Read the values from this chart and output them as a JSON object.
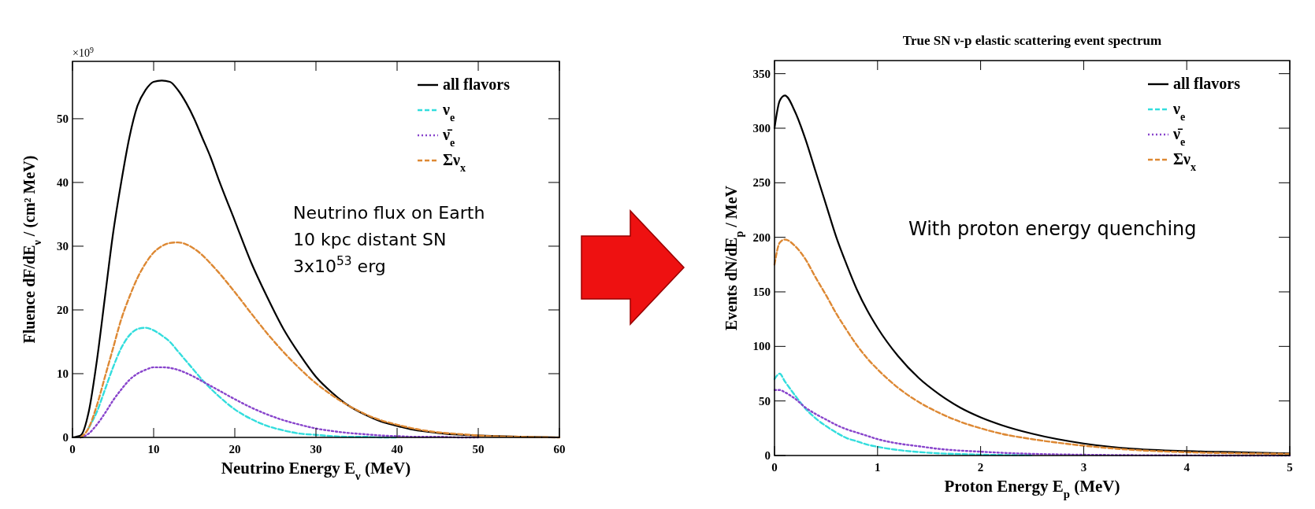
{
  "chart_data": [
    {
      "type": "line",
      "xlabel": "Neutrino Energy E$_{ν}$ (MeV)",
      "ylabel": "Fluence dF/dE$_{ν}$ / (cm² MeV)",
      "annotations": [
        "×10$^{9}$",
        "Neutrino flux on Earth",
        "10 kpc distant SN",
        "3x10$^{53}$ erg"
      ],
      "x": [
        0,
        1,
        2,
        3,
        4,
        5,
        6,
        7,
        8,
        9,
        10,
        11,
        12,
        13,
        14,
        15,
        16,
        17,
        18,
        20,
        22,
        24,
        26,
        28,
        30,
        32,
        34,
        36,
        38,
        40,
        42,
        45,
        48,
        50,
        55,
        60
      ],
      "series": [
        {
          "name": "all flavors",
          "color": "#000000",
          "line_style": "solid",
          "values": [
            0,
            0.3,
            4,
            12,
            22,
            32,
            40,
            47,
            52,
            54.5,
            55.8,
            56,
            55.8,
            54.5,
            52.5,
            50,
            47,
            44,
            40.5,
            34,
            27.5,
            22,
            17,
            13,
            9.5,
            7,
            5,
            3.6,
            2.5,
            1.8,
            1.2,
            0.7,
            0.4,
            0.3,
            0.1,
            0
          ]
        },
        {
          "name": "ν$_{e}$",
          "color": "#33dddd",
          "line_style": "dashed",
          "values": [
            null,
            null,
            1.5,
            4,
            7.5,
            11,
            14,
            16,
            17,
            17.2,
            16.8,
            16,
            15,
            13.5,
            12,
            10.5,
            9,
            7.7,
            6.5,
            4.4,
            2.9,
            1.8,
            1.1,
            0.6,
            0.4,
            0.2,
            0.1,
            0.1,
            0,
            0,
            null,
            null,
            null,
            null,
            null,
            null
          ]
        },
        {
          "name": "ν̄$_{e}$",
          "color": "#8844cc",
          "line_style": "dotted",
          "values": [
            null,
            0,
            0.6,
            2,
            3.8,
            5.8,
            7.5,
            9,
            10,
            10.6,
            11,
            11,
            10.9,
            10.6,
            10.1,
            9.5,
            8.8,
            8.1,
            7.4,
            6,
            4.7,
            3.6,
            2.7,
            2,
            1.4,
            1,
            0.7,
            0.5,
            0.3,
            0.2,
            0.1,
            0.1,
            0,
            0,
            null,
            null
          ]
        },
        {
          "name": "Σν$_{x}$",
          "color": "#dd8833",
          "line_style": "dashed",
          "values": [
            null,
            0,
            1.5,
            5,
            9.5,
            14,
            18.5,
            22,
            25,
            27.3,
            29,
            30,
            30.5,
            30.6,
            30.3,
            29.6,
            28.6,
            27.3,
            25.9,
            22.8,
            19.5,
            16.3,
            13.4,
            10.8,
            8.5,
            6.6,
            5,
            3.7,
            2.7,
            2,
            1.4,
            0.8,
            0.5,
            0.3,
            0.1,
            0
          ]
        }
      ],
      "xlim": [
        0,
        60
      ],
      "xticks": [
        0,
        10,
        20,
        30,
        40,
        50,
        60
      ],
      "ylim": [
        0,
        59
      ],
      "yticks": [
        0,
        10,
        20,
        30,
        40,
        50
      ],
      "legend": "top right",
      "grid": false
    },
    {
      "type": "line",
      "title": "True SN ν-p elastic scattering event spectrum",
      "xlabel": "Proton Energy E$_{p}$ (MeV)",
      "ylabel": "Events dN/dE$_{p}$ / MeV",
      "annotations": [
        "With proton energy quenching"
      ],
      "x": [
        0,
        0.05,
        0.1,
        0.2,
        0.3,
        0.4,
        0.5,
        0.6,
        0.7,
        0.8,
        0.9,
        1,
        1.2,
        1.4,
        1.6,
        1.8,
        2,
        2.2,
        2.5,
        3,
        3.5,
        4,
        4.5,
        5
      ],
      "series": [
        {
          "name": "all flavors",
          "color": "#000000",
          "line_style": "solid",
          "values": [
            300,
            325,
            330,
            315,
            290,
            260,
            230,
            200,
            175,
            152,
            133,
            117,
            91,
            71,
            56,
            44,
            35,
            28,
            20,
            11,
            6,
            4,
            3,
            2
          ]
        },
        {
          "name": "ν$_{e}$",
          "color": "#33dddd",
          "line_style": "dashed",
          "values": [
            70,
            75,
            68,
            55,
            43,
            34,
            27,
            21,
            16,
            13,
            10,
            8,
            5,
            3.2,
            2,
            1.3,
            0.8,
            0.5,
            0.3,
            null,
            null,
            null,
            null,
            null
          ]
        },
        {
          "name": "ν̄$_{e}$",
          "color": "#8844cc",
          "line_style": "dotted",
          "values": [
            60,
            60,
            58,
            52,
            44,
            38,
            33,
            28,
            24,
            21,
            18,
            15,
            11,
            8.5,
            6,
            4.5,
            3.5,
            2.5,
            1.5,
            0.7,
            0.3,
            0.1,
            0,
            0
          ]
        },
        {
          "name": "Σν$_{x}$",
          "color": "#dd8833",
          "line_style": "dashed",
          "values": [
            175,
            195,
            198,
            192,
            180,
            163,
            147,
            130,
            115,
            101,
            89,
            79,
            62,
            49,
            39,
            31,
            25,
            20,
            15,
            9,
            5,
            3,
            2,
            1.5
          ]
        }
      ],
      "xlim": [
        0,
        5
      ],
      "xticks": [
        0,
        1,
        2,
        3,
        4,
        5
      ],
      "ylim": [
        0,
        362
      ],
      "yticks": [
        0,
        50,
        100,
        150,
        200,
        250,
        300,
        350
      ],
      "legend": "top right",
      "grid": false
    }
  ]
}
